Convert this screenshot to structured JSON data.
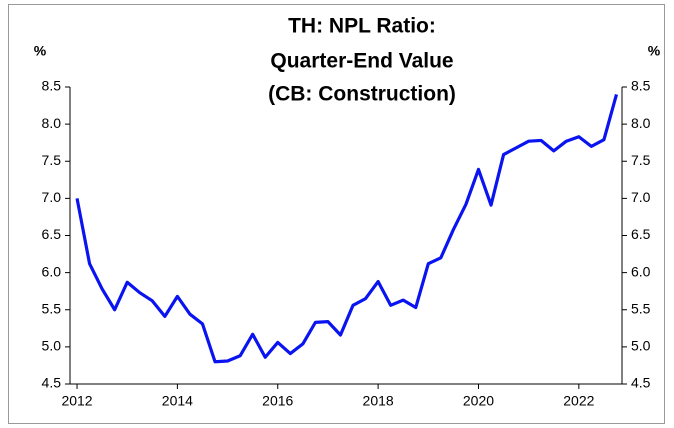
{
  "chart_data": {
    "type": "line",
    "title": [
      "TH: NPL Ratio:",
      "Quarter-End Value",
      "(CB: Construction)"
    ],
    "ylabel": "%",
    "y2label": "%",
    "x": [
      2012,
      2012.25,
      2012.5,
      2012.75,
      2013,
      2013.25,
      2013.5,
      2013.75,
      2014,
      2014.25,
      2014.5,
      2014.75,
      2015,
      2015.25,
      2015.5,
      2015.75,
      2016,
      2016.25,
      2016.5,
      2016.75,
      2017,
      2017.25,
      2017.5,
      2017.75,
      2018,
      2018.25,
      2018.5,
      2018.75,
      2019,
      2019.25,
      2019.5,
      2019.75,
      2020,
      2020.25,
      2020.5,
      2020.75,
      2021,
      2021.25,
      2021.5,
      2021.75,
      2022,
      2022.25,
      2022.5,
      2022.75
    ],
    "series": [
      {
        "name": "NPL Ratio",
        "color": "#0a14f0",
        "values": [
          7.0,
          6.12,
          5.78,
          5.5,
          5.87,
          5.73,
          5.62,
          5.41,
          5.68,
          5.44,
          5.31,
          4.8,
          4.81,
          4.88,
          5.17,
          4.86,
          5.06,
          4.91,
          5.04,
          5.33,
          5.34,
          5.16,
          5.56,
          5.65,
          5.88,
          5.56,
          5.63,
          5.53,
          6.12,
          6.2,
          6.58,
          6.92,
          7.39,
          6.91,
          7.59,
          7.68,
          7.77,
          7.78,
          7.64,
          7.77,
          7.83,
          7.7,
          7.79,
          8.4
        ]
      }
    ],
    "xlim": [
      2011.86,
      2022.86
    ],
    "xticks": [
      2012,
      2014,
      2016,
      2018,
      2020,
      2022
    ],
    "ylim": [
      4.5,
      8.5
    ],
    "yticks": [
      4.5,
      {
        "value": 5,
        "label": "5.0"
      },
      5.5,
      {
        "value": 6,
        "label": "6.0"
      },
      6.5,
      {
        "value": 7,
        "label": "7.0"
      },
      7.5,
      {
        "value": 8,
        "label": "8.0"
      },
      8.5
    ],
    "y2lim": [
      4.5,
      8.5
    ],
    "y2ticks": [
      4.5,
      {
        "value": 5,
        "label": "5.0"
      },
      5.5,
      {
        "value": 6,
        "label": "6.0"
      },
      6.5,
      {
        "value": 7,
        "label": "7.0"
      },
      7.5,
      {
        "value": 8,
        "label": "8.0"
      },
      8.5
    ],
    "grid": false
  }
}
